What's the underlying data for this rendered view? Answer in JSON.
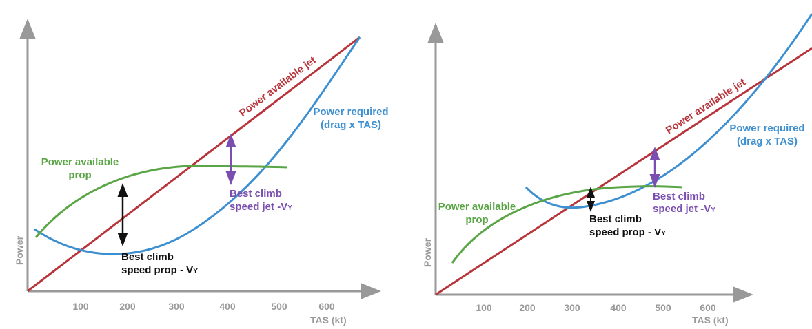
{
  "panels": [
    {
      "x_ticks": [
        "100",
        "200",
        "300",
        "400",
        "500",
        "600"
      ],
      "x_label": "TAS (kt)",
      "y_label": "Power",
      "power_available_jet": "Power available jet",
      "power_required": [
        "Power required",
        "(drag x TAS)"
      ],
      "power_available_prop": [
        "Power available",
        "prop"
      ],
      "best_climb_prop": {
        "line1": "Best climb",
        "line2": "speed prop - V",
        "subscript": "Y"
      },
      "best_climb_jet": {
        "line1": "Best climb",
        "line2": "speed jet -V",
        "subscript": "Y"
      }
    },
    {
      "x_ticks": [
        "100",
        "200",
        "300",
        "400",
        "500",
        "600"
      ],
      "x_label": "TAS (kt)",
      "y_label": "Power",
      "power_available_jet": "Power available jet",
      "power_required": [
        "Power required",
        "(drag x TAS)"
      ],
      "power_available_prop": [
        "Power available",
        "prop"
      ],
      "best_climb_prop": {
        "line1": "Best climb",
        "line2": "speed prop - V",
        "subscript": "Y"
      },
      "best_climb_jet": {
        "line1": "Best climb",
        "line2": "speed jet -V",
        "subscript": "Y"
      }
    }
  ]
}
